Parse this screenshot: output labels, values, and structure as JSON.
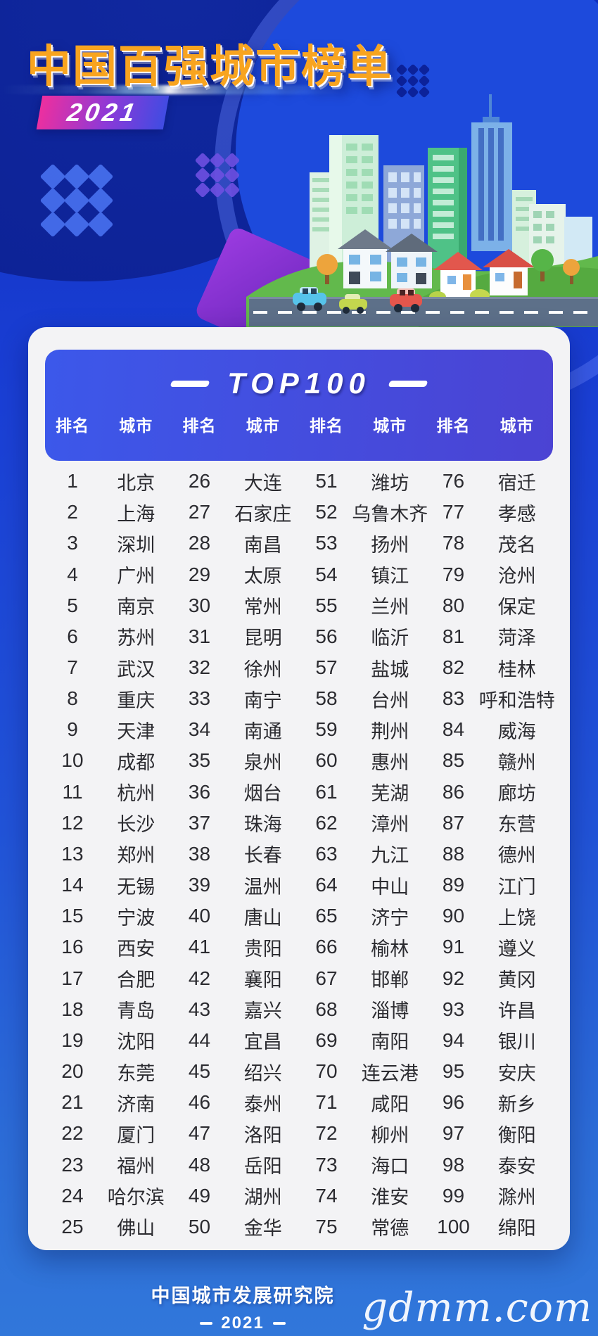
{
  "poster": {
    "title": "中国百强城市榜单",
    "year_badge": "2021"
  },
  "table": {
    "heading": "TOP100",
    "column_headers": [
      "排名",
      "城市",
      "排名",
      "城市",
      "排名",
      "城市",
      "排名",
      "城市"
    ]
  },
  "footer": {
    "organization": "中国城市发展研究院",
    "year": "2021",
    "watermark": "gdmm.com"
  },
  "colors": {
    "title_orange": "#f8a41f",
    "badge_gradient_start": "#ee2f9e",
    "badge_gradient_end": "#3f4ce2",
    "header_bar_gradient_start": "#3c58ea",
    "header_bar_gradient_end": "#4b43d3",
    "background_blue": "#1a3fd5",
    "card_background": "#f3f3f5",
    "row_text": "#2b2b30"
  },
  "chart_data": {
    "type": "table",
    "title": "TOP100 — 中国百强城市榜单 2021",
    "columns": [
      "排名",
      "城市"
    ],
    "layout": "25 rows × 4 rank/city pairs, column-major order",
    "entries": [
      {
        "rank": 1,
        "city": "北京"
      },
      {
        "rank": 2,
        "city": "上海"
      },
      {
        "rank": 3,
        "city": "深圳"
      },
      {
        "rank": 4,
        "city": "广州"
      },
      {
        "rank": 5,
        "city": "南京"
      },
      {
        "rank": 6,
        "city": "苏州"
      },
      {
        "rank": 7,
        "city": "武汉"
      },
      {
        "rank": 8,
        "city": "重庆"
      },
      {
        "rank": 9,
        "city": "天津"
      },
      {
        "rank": 10,
        "city": "成都"
      },
      {
        "rank": 11,
        "city": "杭州"
      },
      {
        "rank": 12,
        "city": "长沙"
      },
      {
        "rank": 13,
        "city": "郑州"
      },
      {
        "rank": 14,
        "city": "无锡"
      },
      {
        "rank": 15,
        "city": "宁波"
      },
      {
        "rank": 16,
        "city": "西安"
      },
      {
        "rank": 17,
        "city": "合肥"
      },
      {
        "rank": 18,
        "city": "青岛"
      },
      {
        "rank": 19,
        "city": "沈阳"
      },
      {
        "rank": 20,
        "city": "东莞"
      },
      {
        "rank": 21,
        "city": "济南"
      },
      {
        "rank": 22,
        "city": "厦门"
      },
      {
        "rank": 23,
        "city": "福州"
      },
      {
        "rank": 24,
        "city": "哈尔滨"
      },
      {
        "rank": 25,
        "city": "佛山"
      },
      {
        "rank": 26,
        "city": "大连"
      },
      {
        "rank": 27,
        "city": "石家庄"
      },
      {
        "rank": 28,
        "city": "南昌"
      },
      {
        "rank": 29,
        "city": "太原"
      },
      {
        "rank": 30,
        "city": "常州"
      },
      {
        "rank": 31,
        "city": "昆明"
      },
      {
        "rank": 32,
        "city": "徐州"
      },
      {
        "rank": 33,
        "city": "南宁"
      },
      {
        "rank": 34,
        "city": "南通"
      },
      {
        "rank": 35,
        "city": "泉州"
      },
      {
        "rank": 36,
        "city": "烟台"
      },
      {
        "rank": 37,
        "city": "珠海"
      },
      {
        "rank": 38,
        "city": "长春"
      },
      {
        "rank": 39,
        "city": "温州"
      },
      {
        "rank": 40,
        "city": "唐山"
      },
      {
        "rank": 41,
        "city": "贵阳"
      },
      {
        "rank": 42,
        "city": "襄阳"
      },
      {
        "rank": 43,
        "city": "嘉兴"
      },
      {
        "rank": 44,
        "city": "宜昌"
      },
      {
        "rank": 45,
        "city": "绍兴"
      },
      {
        "rank": 46,
        "city": "泰州"
      },
      {
        "rank": 47,
        "city": "洛阳"
      },
      {
        "rank": 48,
        "city": "岳阳"
      },
      {
        "rank": 49,
        "city": "湖州"
      },
      {
        "rank": 50,
        "city": "金华"
      },
      {
        "rank": 51,
        "city": "潍坊"
      },
      {
        "rank": 52,
        "city": "乌鲁木齐"
      },
      {
        "rank": 53,
        "city": "扬州"
      },
      {
        "rank": 54,
        "city": "镇江"
      },
      {
        "rank": 55,
        "city": "兰州"
      },
      {
        "rank": 56,
        "city": "临沂"
      },
      {
        "rank": 57,
        "city": "盐城"
      },
      {
        "rank": 58,
        "city": "台州"
      },
      {
        "rank": 59,
        "city": "荆州"
      },
      {
        "rank": 60,
        "city": "惠州"
      },
      {
        "rank": 61,
        "city": "芜湖"
      },
      {
        "rank": 62,
        "city": "漳州"
      },
      {
        "rank": 63,
        "city": "九江"
      },
      {
        "rank": 64,
        "city": "中山"
      },
      {
        "rank": 65,
        "city": "济宁"
      },
      {
        "rank": 66,
        "city": "榆林"
      },
      {
        "rank": 67,
        "city": "邯郸"
      },
      {
        "rank": 68,
        "city": "淄博"
      },
      {
        "rank": 69,
        "city": "南阳"
      },
      {
        "rank": 70,
        "city": "连云港"
      },
      {
        "rank": 71,
        "city": "咸阳"
      },
      {
        "rank": 72,
        "city": "柳州"
      },
      {
        "rank": 73,
        "city": "海口"
      },
      {
        "rank": 74,
        "city": "淮安"
      },
      {
        "rank": 75,
        "city": "常德"
      },
      {
        "rank": 76,
        "city": "宿迁"
      },
      {
        "rank": 77,
        "city": "孝感"
      },
      {
        "rank": 78,
        "city": "茂名"
      },
      {
        "rank": 79,
        "city": "沧州"
      },
      {
        "rank": 80,
        "city": "保定"
      },
      {
        "rank": 81,
        "city": "菏泽"
      },
      {
        "rank": 82,
        "city": "桂林"
      },
      {
        "rank": 83,
        "city": "呼和浩特"
      },
      {
        "rank": 84,
        "city": "威海"
      },
      {
        "rank": 85,
        "city": "赣州"
      },
      {
        "rank": 86,
        "city": "廊坊"
      },
      {
        "rank": 87,
        "city": "东营"
      },
      {
        "rank": 88,
        "city": "德州"
      },
      {
        "rank": 89,
        "city": "江门"
      },
      {
        "rank": 90,
        "city": "上饶"
      },
      {
        "rank": 91,
        "city": "遵义"
      },
      {
        "rank": 92,
        "city": "黄冈"
      },
      {
        "rank": 93,
        "city": "许昌"
      },
      {
        "rank": 94,
        "city": "银川"
      },
      {
        "rank": 95,
        "city": "安庆"
      },
      {
        "rank": 96,
        "city": "新乡"
      },
      {
        "rank": 97,
        "city": "衡阳"
      },
      {
        "rank": 98,
        "city": "泰安"
      },
      {
        "rank": 99,
        "city": "滁州"
      },
      {
        "rank": 100,
        "city": "绵阳"
      }
    ]
  }
}
